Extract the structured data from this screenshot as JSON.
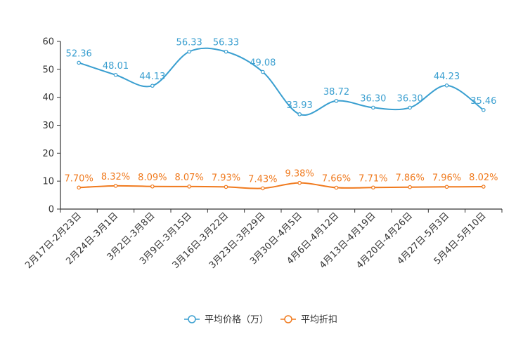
{
  "chart_data": {
    "type": "line",
    "title": "",
    "xlabel": "",
    "ylabel": "",
    "ylim": [
      0,
      60
    ],
    "yticks": [
      0,
      10,
      20,
      30,
      40,
      50,
      60
    ],
    "grid": false,
    "legend_position": "bottom-center",
    "categories": [
      "2月17日-2月23日",
      "2月24日-3月1日",
      "3月2日-3月8日",
      "3月9日-3月15日",
      "3月16日-3月22日",
      "3月23日-3月29日",
      "3月30日-4月5日",
      "4月6日-4月12日",
      "4月13日-4月19日",
      "4月20日-4月26日",
      "4月27日-5月3日",
      "5月4日-5月10日"
    ],
    "series": [
      {
        "name": "平均价格（万）",
        "color": "#3a9fd0",
        "values": [
          52.36,
          48.01,
          44.13,
          56.33,
          56.33,
          49.08,
          33.93,
          38.72,
          36.3,
          36.3,
          44.23,
          35.46
        ],
        "labels": [
          "52.36",
          "48.01",
          "44.13",
          "56.33",
          "56.33",
          "49.08",
          "33.93",
          "38.72",
          "36.30",
          "36.30",
          "44.23",
          "35.46"
        ]
      },
      {
        "name": "平均折扣",
        "color": "#f07a1e",
        "values": [
          7.7,
          8.32,
          8.09,
          8.07,
          7.93,
          7.43,
          9.38,
          7.66,
          7.71,
          7.86,
          7.96,
          8.02
        ],
        "labels": [
          "7.70%",
          "8.32%",
          "8.09%",
          "8.07%",
          "7.93%",
          "7.43%",
          "9.38%",
          "7.66%",
          "7.71%",
          "7.86%",
          "7.96%",
          "8.02%"
        ]
      }
    ]
  }
}
